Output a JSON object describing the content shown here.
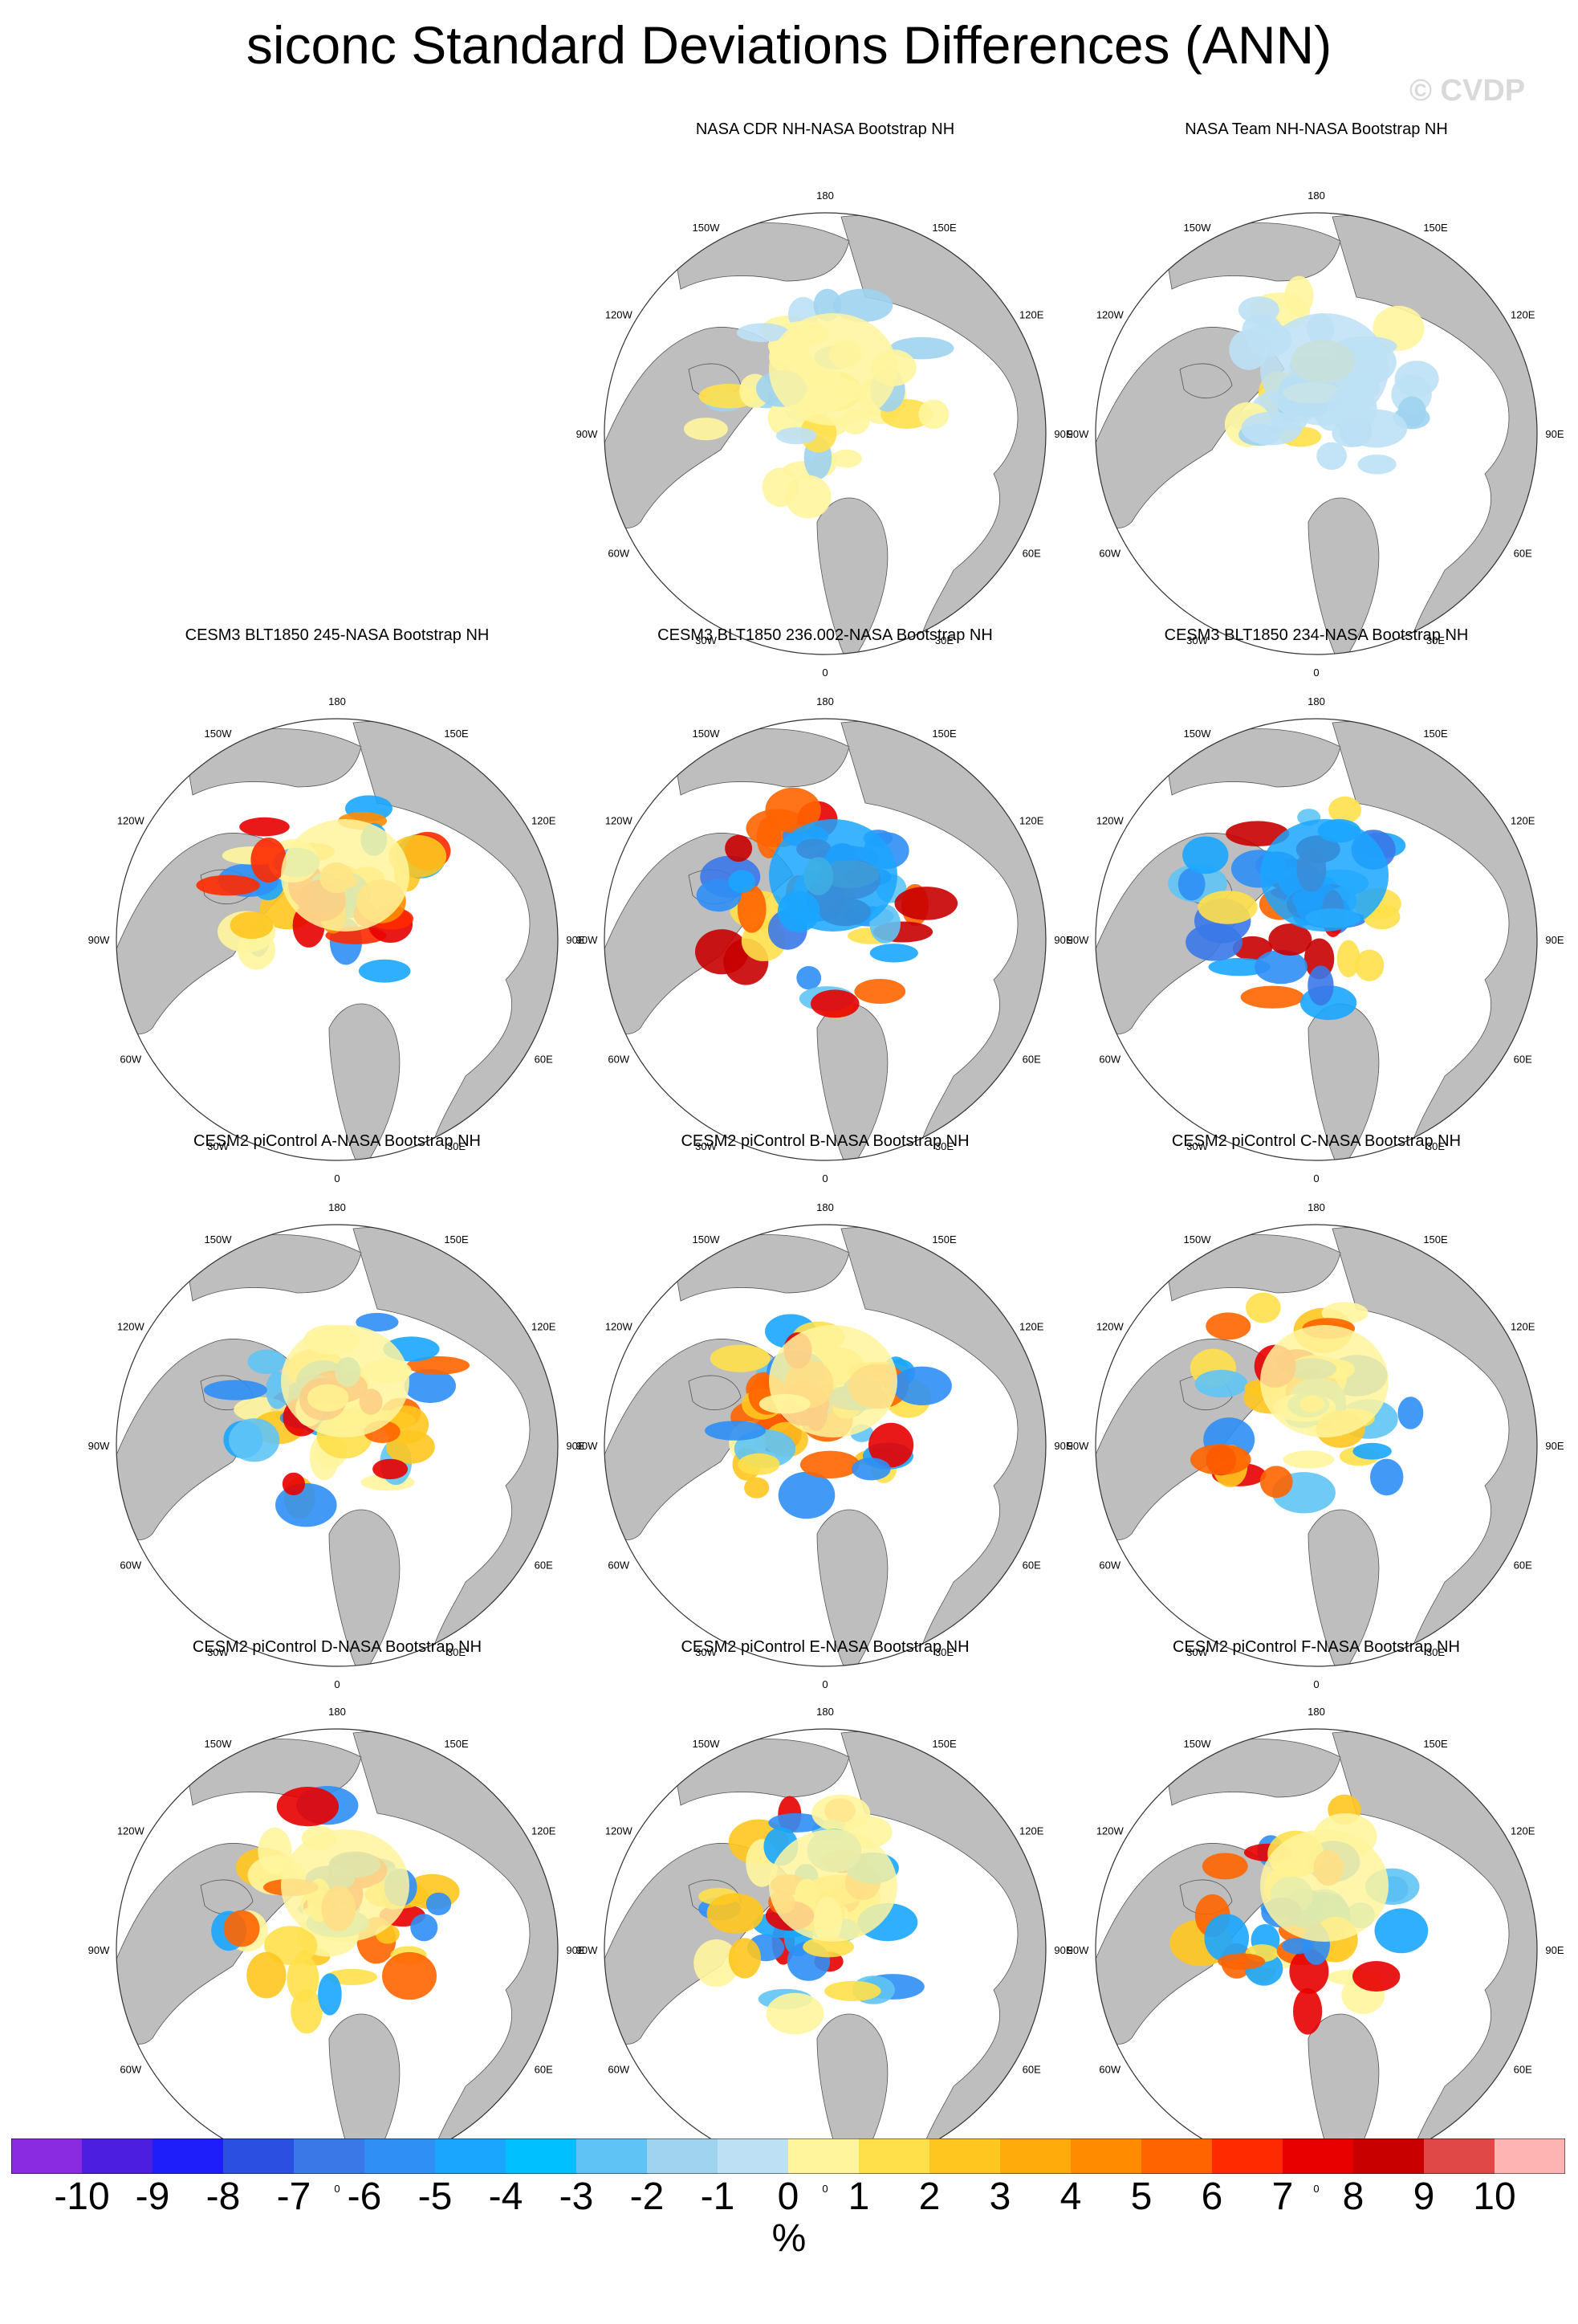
{
  "title": "siconc Standard Deviations Differences (ANN)",
  "watermark": "© CVDP",
  "lon_labels": [
    "180",
    "150E",
    "120E",
    "90E",
    "60E",
    "30E",
    "0",
    "30W",
    "60W",
    "90W",
    "120W",
    "150W"
  ],
  "chart_data": {
    "type": "heatmap",
    "projection": "north polar stereographic",
    "units": "%",
    "colorbar": {
      "levels": [
        -10,
        -9,
        -8,
        -7,
        -6,
        -5,
        -4,
        -3,
        -2,
        -1,
        0,
        1,
        2,
        3,
        4,
        5,
        6,
        7,
        8,
        9,
        10
      ],
      "tick_labels": [
        "-10",
        "-9",
        "-8",
        "-7",
        "-6",
        "-5",
        "-4",
        "-3",
        "-2",
        "-1",
        "0",
        "1",
        "2",
        "3",
        "4",
        "5",
        "6",
        "7",
        "8",
        "9",
        "10"
      ],
      "colors": [
        "#8a2be2",
        "#4b1ee0",
        "#1e1efa",
        "#2b4fe0",
        "#3a78e8",
        "#2f8ff5",
        "#1aa6ff",
        "#00c0ff",
        "#5fc4f5",
        "#9fd3f0",
        "#bde0f5",
        "#fff59d",
        "#ffe04a",
        "#ffc61f",
        "#ffab0b",
        "#ff8c00",
        "#ff6400",
        "#ff2a00",
        "#e80000",
        "#c80000",
        "#e04848",
        "#ffb4b4"
      ],
      "land_color": "#bebebe"
    },
    "panels": [
      {
        "title": "NASA CDR NH-NASA Bootstrap NH",
        "row": 0,
        "col": 1,
        "pattern": "mild_positive"
      },
      {
        "title": "NASA Team NH-NASA Bootstrap NH",
        "row": 0,
        "col": 2,
        "pattern": "mild_mixed"
      },
      {
        "title": "CESM3 BLT1850 245-NASA Bootstrap NH",
        "row": 1,
        "col": 0,
        "pattern": "strong"
      },
      {
        "title": "CESM3 BLT1850 236.002-NASA Bootstrap NH",
        "row": 1,
        "col": 1,
        "pattern": "strong_blue"
      },
      {
        "title": "CESM3 BLT1850 234-NASA Bootstrap NH",
        "row": 1,
        "col": 2,
        "pattern": "strong_blue"
      },
      {
        "title": "CESM2 piControl A-NASA Bootstrap NH",
        "row": 2,
        "col": 0,
        "pattern": "moderate"
      },
      {
        "title": "CESM2 piControl B-NASA Bootstrap NH",
        "row": 2,
        "col": 1,
        "pattern": "moderate"
      },
      {
        "title": "CESM2 piControl C-NASA Bootstrap NH",
        "row": 2,
        "col": 2,
        "pattern": "moderate"
      },
      {
        "title": "CESM2 piControl D-NASA Bootstrap NH",
        "row": 3,
        "col": 0,
        "pattern": "moderate"
      },
      {
        "title": "CESM2 piControl E-NASA Bootstrap NH",
        "row": 3,
        "col": 1,
        "pattern": "moderate"
      },
      {
        "title": "CESM2 piControl F-NASA Bootstrap NH",
        "row": 3,
        "col": 2,
        "pattern": "moderate"
      }
    ]
  }
}
